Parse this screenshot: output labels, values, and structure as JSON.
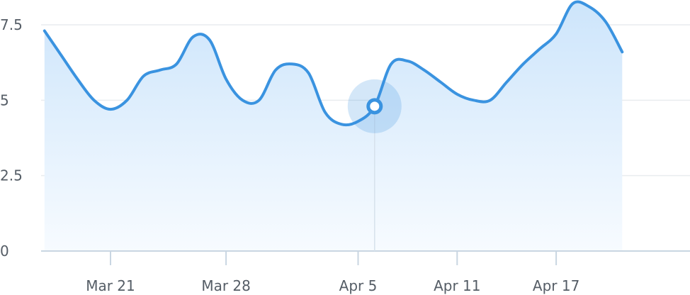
{
  "chart_data": {
    "type": "area",
    "title": "",
    "xlabel": "",
    "ylabel": "",
    "ylim": [
      0,
      7.5
    ],
    "y_ticks": [
      0,
      2.5,
      5,
      7.5
    ],
    "y_tick_labels": [
      "0",
      "2.5",
      "5",
      "7.5"
    ],
    "x_ticks": [
      "2024-03-21",
      "2024-03-28",
      "2024-04-05",
      "2024-04-11",
      "2024-04-17"
    ],
    "x_tick_labels": [
      "Mar 21",
      "Mar 28",
      "Apr 5",
      "Apr 11",
      "Apr 17"
    ],
    "grid": "horizontal",
    "line_color": "#3a93e0",
    "fill_color_top": "#cde5fb",
    "fill_color_bottom": "#f7fbff",
    "series": [
      {
        "values": [
          {
            "x": "2024-03-17",
            "y": 7.3
          },
          {
            "x": "2024-03-18",
            "y": 6.5
          },
          {
            "x": "2024-03-19",
            "y": 5.7
          },
          {
            "x": "2024-03-20",
            "y": 5.0
          },
          {
            "x": "2024-03-21",
            "y": 4.7
          },
          {
            "x": "2024-03-22",
            "y": 5.0
          },
          {
            "x": "2024-03-23",
            "y": 5.8
          },
          {
            "x": "2024-03-24",
            "y": 6.0
          },
          {
            "x": "2024-03-25",
            "y": 6.2
          },
          {
            "x": "2024-03-26",
            "y": 7.1
          },
          {
            "x": "2024-03-27",
            "y": 7.0
          },
          {
            "x": "2024-03-28",
            "y": 5.7
          },
          {
            "x": "2024-03-29",
            "y": 5.0
          },
          {
            "x": "2024-03-30",
            "y": 5.0
          },
          {
            "x": "2024-03-31",
            "y": 6.0
          },
          {
            "x": "2024-04-01",
            "y": 6.2
          },
          {
            "x": "2024-04-02",
            "y": 5.9
          },
          {
            "x": "2024-04-03",
            "y": 4.6
          },
          {
            "x": "2024-04-04",
            "y": 4.2
          },
          {
            "x": "2024-04-05",
            "y": 4.3
          },
          {
            "x": "2024-04-06",
            "y": 4.8
          },
          {
            "x": "2024-04-07",
            "y": 6.2
          },
          {
            "x": "2024-04-08",
            "y": 6.3
          },
          {
            "x": "2024-04-09",
            "y": 6.0
          },
          {
            "x": "2024-04-10",
            "y": 5.6
          },
          {
            "x": "2024-04-11",
            "y": 5.2
          },
          {
            "x": "2024-04-12",
            "y": 5.0
          },
          {
            "x": "2024-04-13",
            "y": 5.0
          },
          {
            "x": "2024-04-14",
            "y": 5.6
          },
          {
            "x": "2024-04-15",
            "y": 6.2
          },
          {
            "x": "2024-04-16",
            "y": 6.7
          },
          {
            "x": "2024-04-17",
            "y": 7.2
          },
          {
            "x": "2024-04-18",
            "y": 8.2
          },
          {
            "x": "2024-04-19",
            "y": 8.1
          },
          {
            "x": "2024-04-20",
            "y": 7.6
          },
          {
            "x": "2024-04-21",
            "y": 6.6
          }
        ]
      }
    ],
    "highlight": {
      "x": "2024-04-06",
      "y": 4.8
    }
  }
}
